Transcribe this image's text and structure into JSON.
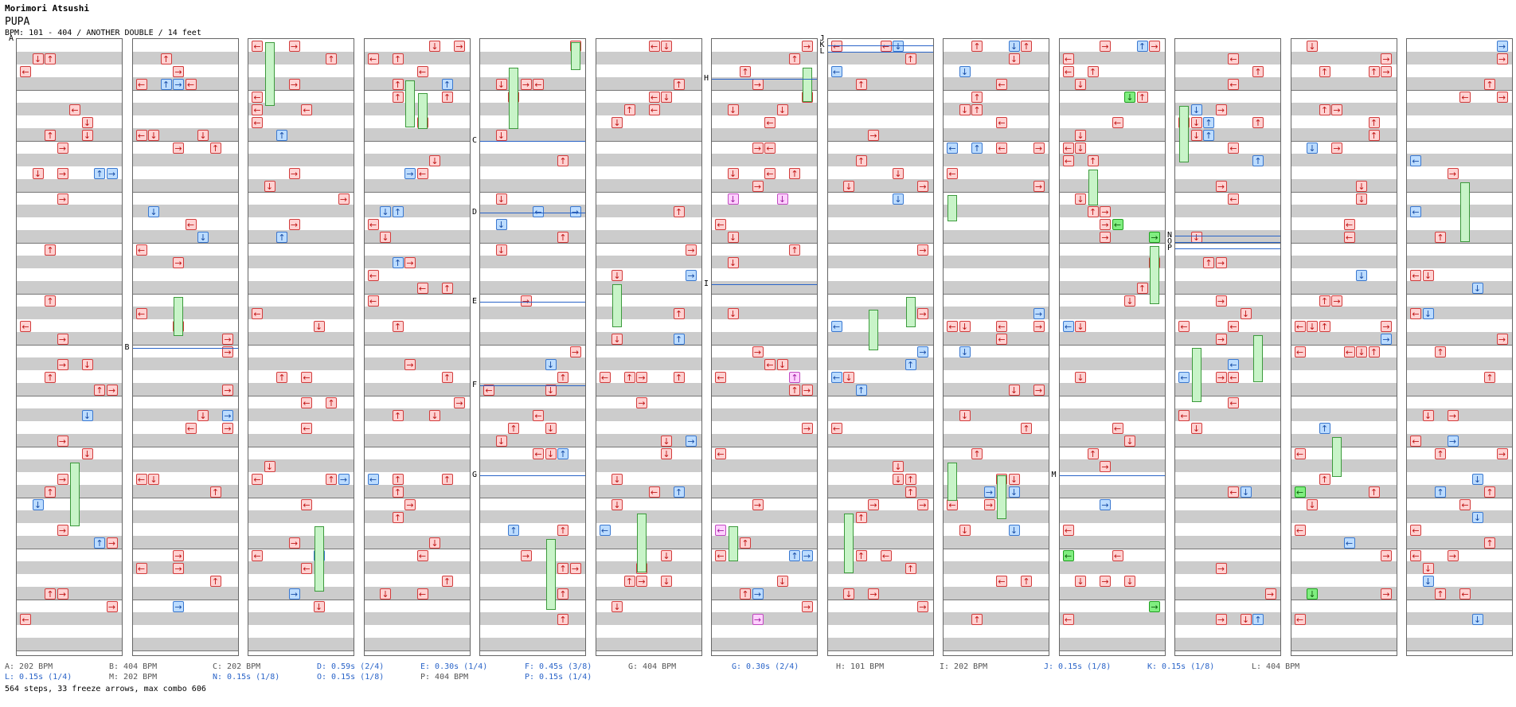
{
  "header": {
    "artist": "Morimori Atsushi",
    "title": "PUPA",
    "bpm_line": "BPM: 101 - 404 / ANOTHER DOUBLE / 14 feet"
  },
  "legend": {
    "row1": [
      {
        "text": "A: 202 BPM",
        "style": "gray"
      },
      {
        "text": "B: 404 BPM",
        "style": "gray"
      },
      {
        "text": "C: 202 BPM",
        "style": "gray"
      },
      {
        "text": "D: 0.59s (2/4)",
        "style": "blue"
      },
      {
        "text": "E: 0.30s (1/4)",
        "style": "blue"
      },
      {
        "text": "F: 0.45s (3/8)",
        "style": "blue"
      },
      {
        "text": "G: 404 BPM",
        "style": "gray"
      },
      {
        "text": "G: 0.30s (2/4)",
        "style": "blue"
      },
      {
        "text": "H: 101 BPM",
        "style": "gray"
      },
      {
        "text": "I: 202 BPM",
        "style": "gray"
      },
      {
        "text": "J: 0.15s (1/8)",
        "style": "blue"
      },
      {
        "text": "K: 0.15s (1/8)",
        "style": "blue"
      },
      {
        "text": "L: 404 BPM",
        "style": "gray"
      }
    ],
    "row2": [
      {
        "text": "L: 0.15s (1/4)",
        "style": "blue"
      },
      {
        "text": "M: 202 BPM",
        "style": "gray"
      },
      {
        "text": "N: 0.15s (1/8)",
        "style": "blue"
      },
      {
        "text": "O: 0.15s (1/8)",
        "style": "blue"
      },
      {
        "text": "P: 404 BPM",
        "style": "gray"
      },
      {
        "text": "P: 0.15s (1/4)",
        "style": "blue"
      }
    ]
  },
  "summary": "564 steps, 33 freeze arrows, max combo 606",
  "section_markers": [
    "A",
    "B",
    "C",
    "D",
    "E",
    "F",
    "G",
    "H",
    "I",
    "J",
    "K",
    "L",
    "M",
    "N",
    "O",
    "P"
  ],
  "colors": {
    "red_arrow": "#ffd2d2",
    "blue_arrow": "#bcdcff",
    "pink_arrow": "#ffd0ff",
    "green_arrow": "#80ee80",
    "freeze": "#c8f4c8",
    "stop_line": "#2a64c8"
  },
  "icons": {
    "left": "←",
    "right": "→",
    "up": "↑",
    "down": "↓"
  }
}
